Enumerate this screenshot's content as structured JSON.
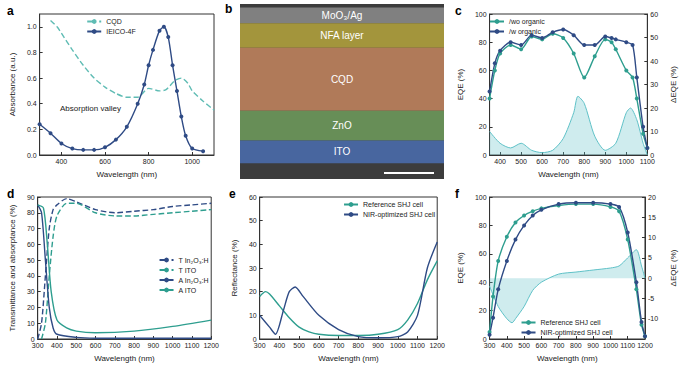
{
  "chart_data": [
    {
      "type": "line",
      "title": "a",
      "xlabel": "Wavelength (nm)",
      "ylabel": "Absorbance (a.u.)",
      "xlim": [
        300,
        1100
      ],
      "xticks": [
        400,
        600,
        800,
        1000
      ],
      "ylim": [
        0,
        1.1
      ],
      "yticks": [
        {
          "value": 0,
          "label": "0.0"
        },
        {
          "value": 0.2,
          "label": "0.2"
        },
        {
          "value": 0.4,
          "label": "0.4"
        },
        {
          "value": 0.6,
          "label": "0.6"
        },
        {
          "value": 0.8,
          "label": "0.8"
        },
        {
          "value": 1.0,
          "label": "1.0"
        }
      ],
      "grid": false,
      "legend": "top",
      "annotations": [
        "Absorption valley"
      ],
      "series": [
        {
          "name": "CQD",
          "color": "#5fbcb4",
          "line_style": "dashed",
          "x": [
            350,
            380,
            400,
            450,
            500,
            550,
            600,
            650,
            700,
            750,
            800,
            850,
            880,
            920,
            950,
            980,
            1000,
            1050,
            1100
          ],
          "values": [
            1.05,
            1.0,
            0.95,
            0.82,
            0.7,
            0.6,
            0.53,
            0.48,
            0.45,
            0.45,
            0.52,
            0.5,
            0.51,
            0.58,
            0.6,
            0.56,
            0.5,
            0.42,
            0.35
          ]
        },
        {
          "name": "IEICO-4F",
          "color": "#2f4b85",
          "marker": "circle",
          "line_style": "solid",
          "x": [
            300,
            350,
            400,
            450,
            500,
            550,
            600,
            650,
            700,
            750,
            780,
            800,
            820,
            850,
            870,
            890,
            910,
            930,
            950,
            970,
            1000,
            1050
          ],
          "values": [
            0.24,
            0.17,
            0.09,
            0.05,
            0.04,
            0.04,
            0.06,
            0.12,
            0.22,
            0.4,
            0.55,
            0.7,
            0.82,
            0.97,
            1.0,
            0.92,
            0.7,
            0.5,
            0.3,
            0.15,
            0.05,
            0.03
          ]
        }
      ]
    },
    {
      "type": "diagram",
      "title": "b",
      "layers": [
        {
          "label": "MoO₃/Ag",
          "color": "#8c8c8c"
        },
        {
          "label": "NFA layer",
          "color": "#b5a43c"
        },
        {
          "label": "CQD",
          "color": "#c4855e"
        },
        {
          "label": "ZnO",
          "color": "#6f9c5c"
        },
        {
          "label": "ITO",
          "color": "#4a6db0"
        }
      ]
    },
    {
      "type": "line",
      "title": "c",
      "xlabel": "Wavelength (nm)",
      "ylabel": "EQE (%)",
      "y2label": "ΔEQE (%)",
      "xlim": [
        350,
        1100
      ],
      "xticks": [
        400,
        500,
        600,
        700,
        800,
        900,
        1000,
        1100
      ],
      "ylim": [
        0,
        100
      ],
      "yticks": [
        0,
        20,
        40,
        60,
        80,
        100
      ],
      "y2lim": [
        0,
        60
      ],
      "y2ticks": [
        0,
        10,
        20,
        30,
        40,
        50,
        60
      ],
      "grid": false,
      "legend": "top-left",
      "series": [
        {
          "name": "/wo organic",
          "color": "#2e9e8f",
          "marker": "circle",
          "line_style": "solid",
          "x": [
            350,
            375,
            400,
            450,
            500,
            550,
            600,
            650,
            700,
            750,
            800,
            850,
            900,
            930,
            950,
            1000,
            1030,
            1050,
            1080,
            1100
          ],
          "values": [
            40,
            60,
            72,
            78,
            75,
            84,
            82,
            86,
            83,
            72,
            55,
            70,
            82,
            80,
            75,
            60,
            55,
            40,
            15,
            5
          ]
        },
        {
          "name": "/w organic",
          "color": "#2f4b85",
          "marker": "circle",
          "line_style": "solid",
          "x": [
            350,
            375,
            400,
            450,
            500,
            550,
            600,
            650,
            700,
            750,
            800,
            850,
            900,
            930,
            950,
            1000,
            1030,
            1050,
            1080,
            1100
          ],
          "values": [
            45,
            65,
            74,
            80,
            78,
            85,
            83,
            87,
            89,
            85,
            78,
            78,
            84,
            83,
            82,
            80,
            78,
            55,
            20,
            5
          ]
        },
        {
          "type": "area",
          "axis": "y2",
          "color": "#5fc1c7",
          "line_style": "solid",
          "x": [
            350,
            400,
            450,
            500,
            550,
            600,
            650,
            700,
            750,
            770,
            800,
            850,
            900,
            950,
            1000,
            1020,
            1050,
            1080,
            1100
          ],
          "values": [
            10,
            5,
            3,
            5,
            2,
            1,
            2,
            7,
            18,
            25,
            22,
            8,
            2,
            5,
            18,
            20,
            15,
            5,
            0
          ]
        }
      ]
    },
    {
      "type": "line",
      "title": "d",
      "xlabel": "Wavelength (nm)",
      "ylabel": "Transmittance and absorptance (%)",
      "xlim": [
        300,
        1200
      ],
      "xticks": [
        300,
        400,
        500,
        600,
        700,
        800,
        900,
        1000,
        1100,
        1200
      ],
      "ylim": [
        0,
        90
      ],
      "yticks": [
        0,
        10,
        20,
        30,
        40,
        50,
        60,
        70,
        80,
        90
      ],
      "grid": false,
      "legend": "right",
      "series": [
        {
          "name": "T In₂O₃:H",
          "color": "#2f4b85",
          "line_style": "dashed",
          "x": [
            300,
            320,
            340,
            360,
            380,
            400,
            450,
            500,
            600,
            700,
            800,
            900,
            1000,
            1100,
            1200
          ],
          "values": [
            0,
            10,
            40,
            70,
            82,
            85,
            89,
            87,
            82,
            80,
            81,
            82,
            84,
            85,
            86
          ]
        },
        {
          "name": "T ITO",
          "color": "#2e9e8f",
          "line_style": "dashed",
          "x": [
            320,
            340,
            360,
            380,
            400,
            450,
            500,
            600,
            700,
            800,
            900,
            1000,
            1100,
            1200
          ],
          "values": [
            0,
            10,
            40,
            65,
            78,
            86,
            86,
            80,
            78,
            78,
            79,
            80,
            81,
            82
          ]
        },
        {
          "name": "A In₂O₃:H",
          "color": "#2f4b85",
          "line_style": "solid",
          "x": [
            300,
            320,
            340,
            360,
            380,
            400,
            500,
            600,
            800,
            1000,
            1200
          ],
          "values": [
            85,
            80,
            50,
            20,
            7,
            3,
            1,
            0.5,
            0.5,
            0.5,
            0.5
          ]
        },
        {
          "name": "A ITO",
          "color": "#2e9e8f",
          "line_style": "solid",
          "x": [
            300,
            330,
            350,
            370,
            400,
            450,
            500,
            600,
            800,
            1000,
            1200
          ],
          "values": [
            85,
            83,
            60,
            30,
            12,
            7,
            5,
            4,
            5,
            8,
            12
          ]
        }
      ]
    },
    {
      "type": "line",
      "title": "e",
      "xlabel": "Wavelength (nm)",
      "ylabel": "Reflectance (%)",
      "xlim": [
        300,
        1200
      ],
      "xticks": [
        300,
        400,
        500,
        600,
        700,
        800,
        900,
        1000,
        1100,
        1200
      ],
      "ylim": [
        0,
        60
      ],
      "yticks": [
        0,
        10,
        20,
        30,
        40,
        50,
        60
      ],
      "grid": false,
      "legend": "top-right",
      "series": [
        {
          "name": "Reference SHJ cell",
          "color": "#2e9e8f",
          "line_style": "solid",
          "x": [
            300,
            330,
            350,
            400,
            450,
            500,
            550,
            600,
            700,
            800,
            900,
            1000,
            1050,
            1100,
            1150,
            1200
          ],
          "values": [
            18,
            20,
            19,
            14,
            9,
            5,
            3,
            2,
            1.5,
            1.5,
            2,
            4,
            8,
            15,
            25,
            33
          ]
        },
        {
          "name": "NIR-optimized SHJ cell",
          "color": "#2f4b85",
          "line_style": "solid",
          "x": [
            300,
            350,
            380,
            420,
            450,
            480,
            520,
            600,
            700,
            800,
            900,
            1000,
            1050,
            1100,
            1150,
            1200
          ],
          "values": [
            10,
            5,
            2,
            12,
            20,
            22,
            18,
            10,
            4,
            1,
            0.5,
            1,
            3,
            10,
            30,
            41
          ]
        }
      ]
    },
    {
      "type": "line",
      "title": "f",
      "xlabel": "Wavelength (nm)",
      "ylabel": "EQE (%)",
      "y2label": "ΔEQE (%)",
      "xlim": [
        300,
        1200
      ],
      "xticks": [
        300,
        400,
        500,
        600,
        700,
        800,
        900,
        1000,
        1100,
        1200
      ],
      "ylim": [
        0,
        100
      ],
      "yticks": [
        0,
        20,
        40,
        60,
        80,
        100
      ],
      "y2lim": [
        -15,
        20
      ],
      "y2ticks": [
        -10,
        -5,
        0,
        5,
        10,
        15,
        20
      ],
      "grid": false,
      "legend": "bottom",
      "series": [
        {
          "name": "Reference SHJ cell",
          "color": "#2e9e8f",
          "marker": "circle",
          "line_style": "solid",
          "x": [
            300,
            320,
            350,
            400,
            450,
            500,
            550,
            600,
            700,
            800,
            900,
            1000,
            1050,
            1100,
            1150,
            1180,
            1200
          ],
          "values": [
            5,
            30,
            55,
            72,
            82,
            87,
            90,
            92,
            94,
            95,
            95,
            93,
            90,
            70,
            35,
            10,
            2
          ]
        },
        {
          "name": "NIR-optimized SHJ cell",
          "color": "#2f4b85",
          "marker": "circle",
          "line_style": "solid",
          "x": [
            300,
            320,
            350,
            400,
            450,
            500,
            550,
            600,
            700,
            800,
            900,
            1000,
            1050,
            1100,
            1150,
            1180,
            1200
          ],
          "values": [
            3,
            15,
            35,
            55,
            70,
            80,
            87,
            91,
            95,
            96,
            96,
            95,
            93,
            75,
            40,
            12,
            2
          ]
        },
        {
          "type": "area",
          "axis": "y2",
          "color": "#5fc1c7",
          "line_style": "solid",
          "x": [
            300,
            350,
            400,
            430,
            450,
            500,
            550,
            600,
            700,
            800,
            900,
            1000,
            1050,
            1100,
            1150,
            1180,
            1200
          ],
          "values": [
            -2,
            -7,
            -10,
            -11,
            -10,
            -7,
            -3,
            -1,
            1,
            1.5,
            2,
            2.5,
            3,
            5,
            7,
            3,
            0
          ]
        }
      ]
    }
  ]
}
